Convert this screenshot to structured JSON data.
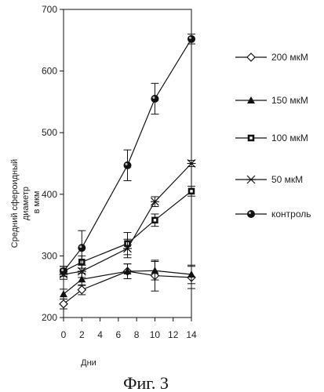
{
  "chart_data": {
    "type": "line",
    "title": "",
    "xlabel": "Дни",
    "ylabel": "Средний сфероидный диаметр в мкм",
    "caption": "Фиг. 3",
    "xlim": [
      0,
      14
    ],
    "ylim": [
      200,
      700
    ],
    "x_ticks": [
      0,
      2,
      4,
      6,
      8,
      10,
      12,
      14
    ],
    "y_ticks": [
      200,
      300,
      400,
      500,
      600,
      700
    ],
    "x": [
      0,
      2,
      7,
      10,
      14
    ],
    "series": [
      {
        "name": "200 мкМ",
        "marker": "diamond-open",
        "values": [
          222,
          245,
          275,
          268,
          265
        ],
        "errors": [
          8,
          8,
          12,
          25,
          18
        ]
      },
      {
        "name": "150 мкМ",
        "marker": "triangle-filled",
        "values": [
          238,
          262,
          275,
          276,
          270
        ],
        "errors": [
          8,
          10,
          12,
          15,
          15
        ]
      },
      {
        "name": "100 мкМ",
        "marker": "square-filled",
        "values": [
          275,
          290,
          320,
          358,
          405
        ],
        "errors": [
          8,
          10,
          18,
          10,
          8
        ]
      },
      {
        "name": "50 мкМ",
        "marker": "star",
        "values": [
          270,
          275,
          312,
          388,
          450
        ],
        "errors": [
          8,
          10,
          15,
          8,
          5
        ]
      },
      {
        "name": "контроль",
        "marker": "circle-filled",
        "values": [
          275,
          313,
          447,
          555,
          652
        ],
        "errors": [
          8,
          28,
          25,
          25,
          8
        ]
      }
    ],
    "legend_position": "right",
    "grid": false
  },
  "colors": {
    "ink": "#111111"
  }
}
